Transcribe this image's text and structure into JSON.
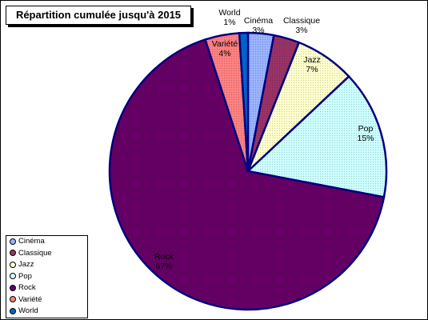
{
  "chart_data": {
    "type": "pie",
    "title": "Répartition cumulée jusqu'à 2015",
    "labels": [
      "Cinéma",
      "Classique",
      "Jazz",
      "Pop",
      "Rock",
      "Variété",
      "World"
    ],
    "values": [
      3,
      3,
      7,
      15,
      67,
      4,
      1
    ],
    "value_labels": [
      "3%",
      "3%",
      "7%",
      "15%",
      "67%",
      "4%",
      "1%"
    ],
    "colors": [
      "#99b3ff",
      "#993366",
      "#ffffcc",
      "#ccffff",
      "#660066",
      "#ff8080",
      "#0066cc"
    ],
    "start_angle_deg": 90,
    "direction": "clockwise",
    "legend_position": "bottom-left"
  }
}
